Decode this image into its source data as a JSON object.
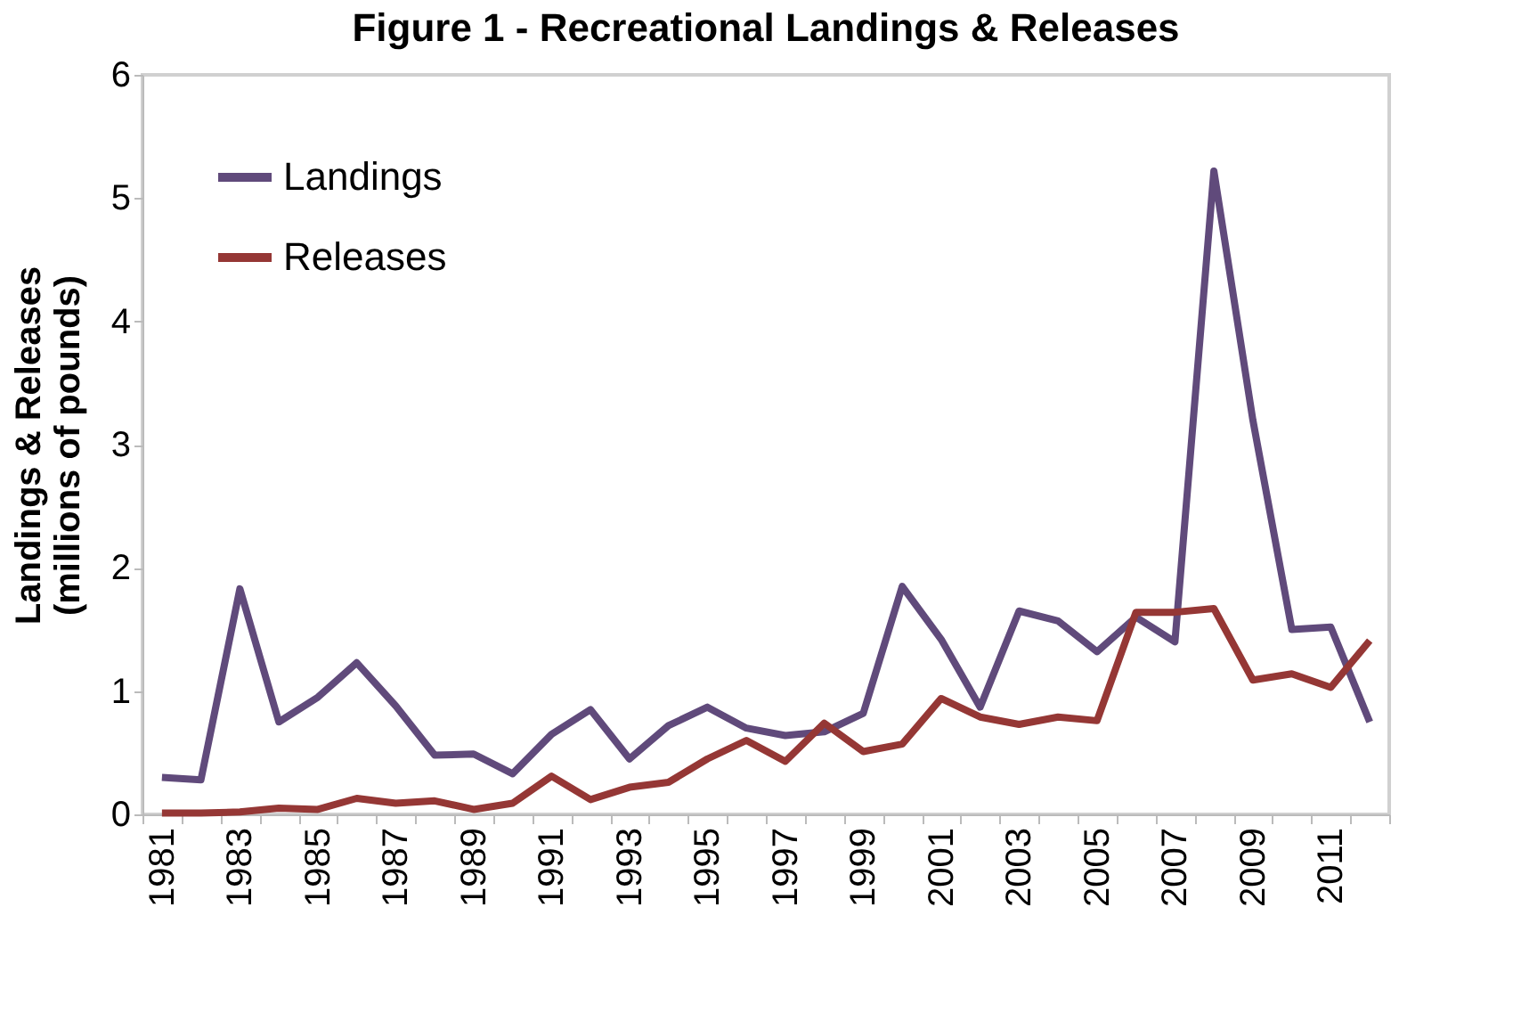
{
  "chart_data": {
    "type": "line",
    "title": "Figure 1 - Recreational Landings & Releases",
    "ylabel": "Landings & Releases\n(millions of pounds)",
    "categories": [
      "1981",
      null,
      "1983",
      null,
      "1985",
      null,
      "1987",
      null,
      "1989",
      null,
      "1991",
      null,
      "1993",
      null,
      "1995",
      null,
      "1997",
      null,
      "1999",
      null,
      "2001",
      null,
      "2003",
      null,
      "2005",
      null,
      "2007",
      null,
      "2009",
      null,
      "2011",
      null
    ],
    "series": [
      {
        "name": "Landings",
        "color": "#604a7b",
        "values": [
          0.3,
          0.28,
          1.83,
          0.75,
          0.95,
          1.23,
          0.88,
          0.48,
          0.49,
          0.33,
          0.65,
          0.85,
          0.45,
          0.72,
          0.87,
          0.7,
          0.64,
          0.67,
          0.82,
          1.85,
          1.42,
          0.87,
          1.65,
          1.57,
          1.32,
          1.6,
          1.4,
          5.22,
          3.2,
          1.5,
          1.52,
          0.75
        ]
      },
      {
        "name": "Releases",
        "color": "#953735",
        "values": [
          0.01,
          0.01,
          0.02,
          0.05,
          0.04,
          0.13,
          0.09,
          0.11,
          0.04,
          0.09,
          0.31,
          0.12,
          0.22,
          0.26,
          0.45,
          0.6,
          0.43,
          0.74,
          0.51,
          0.57,
          0.94,
          0.79,
          0.73,
          0.79,
          0.76,
          1.64,
          1.64,
          1.67,
          1.09,
          1.14,
          1.03,
          1.41
        ]
      }
    ],
    "ylim": [
      0,
      6
    ],
    "yticks": [
      0,
      1,
      2,
      3,
      4,
      5,
      6
    ],
    "grid": false,
    "legend": "top left",
    "marker": "none",
    "line_style": "solid"
  }
}
